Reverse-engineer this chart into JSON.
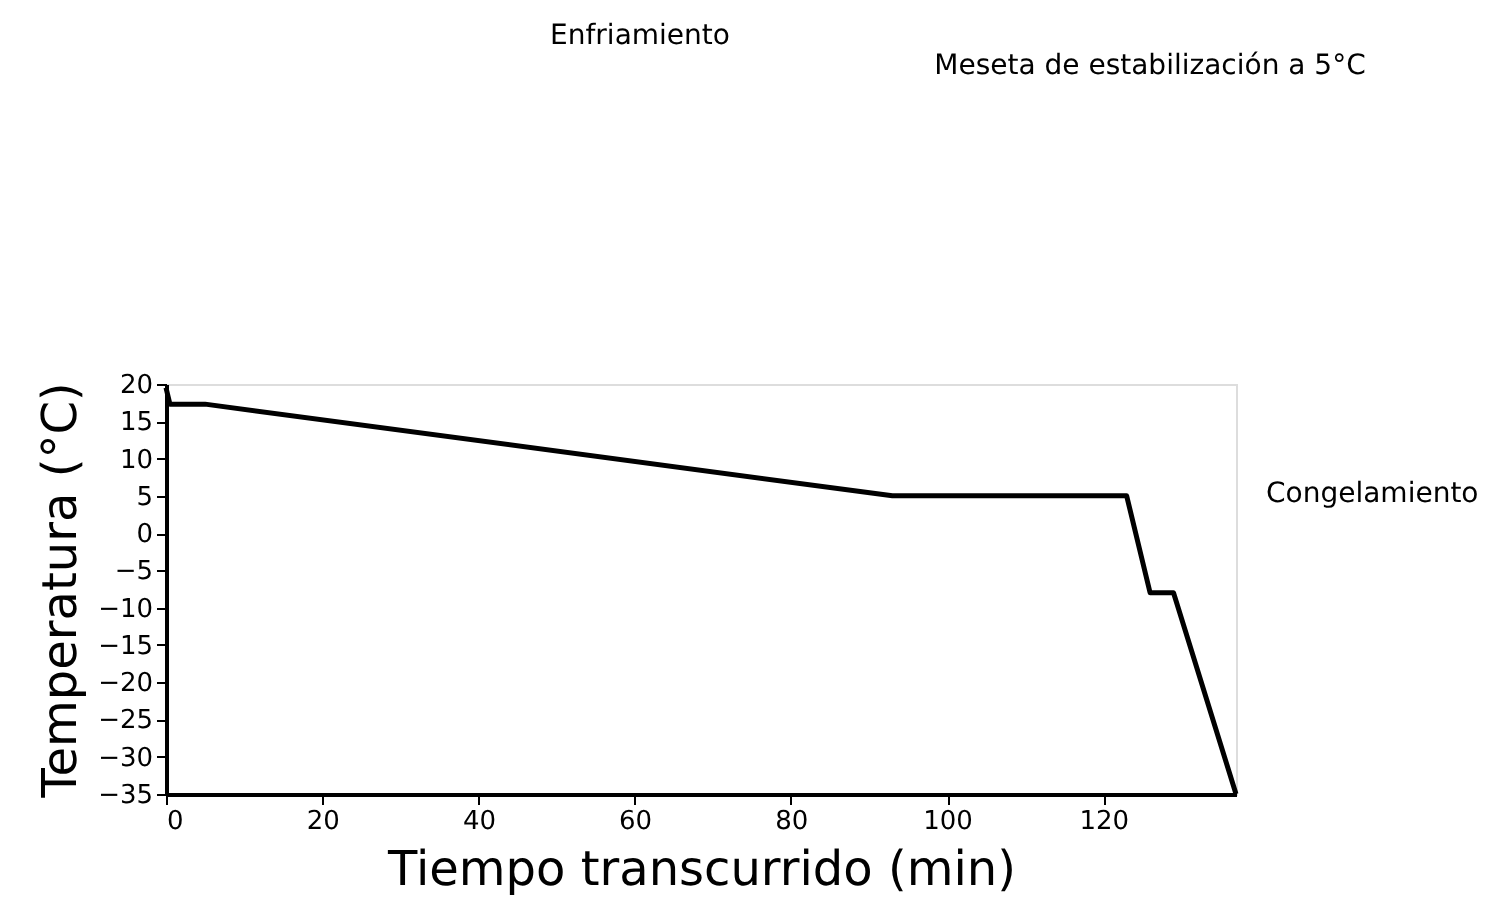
{
  "chart_data": {
    "type": "line",
    "xlabel": "Tiempo transcurrido (min)",
    "ylabel": "Temperatura (°C)",
    "x": [
      0,
      0.5,
      5,
      93,
      123,
      126,
      129,
      137
    ],
    "series": [
      {
        "color": "#000000",
        "values": [
          19.5,
          17.3,
          17.3,
          5,
          5,
          -8,
          -8,
          -35
        ]
      }
    ],
    "xlim": [
      0,
      137
    ],
    "ylim": [
      -35,
      20
    ],
    "xticks": [
      0,
      20,
      40,
      60,
      80,
      100,
      120
    ],
    "yticks": [
      -35,
      -30,
      -25,
      -20,
      -15,
      -10,
      -5,
      0,
      5,
      10,
      15,
      20
    ],
    "annotations": [
      "Enfriamiento",
      "Meseta de estabilización a 5°C",
      "Congelamiento"
    ],
    "grid": false,
    "marker": "none",
    "line_style": "solid"
  }
}
